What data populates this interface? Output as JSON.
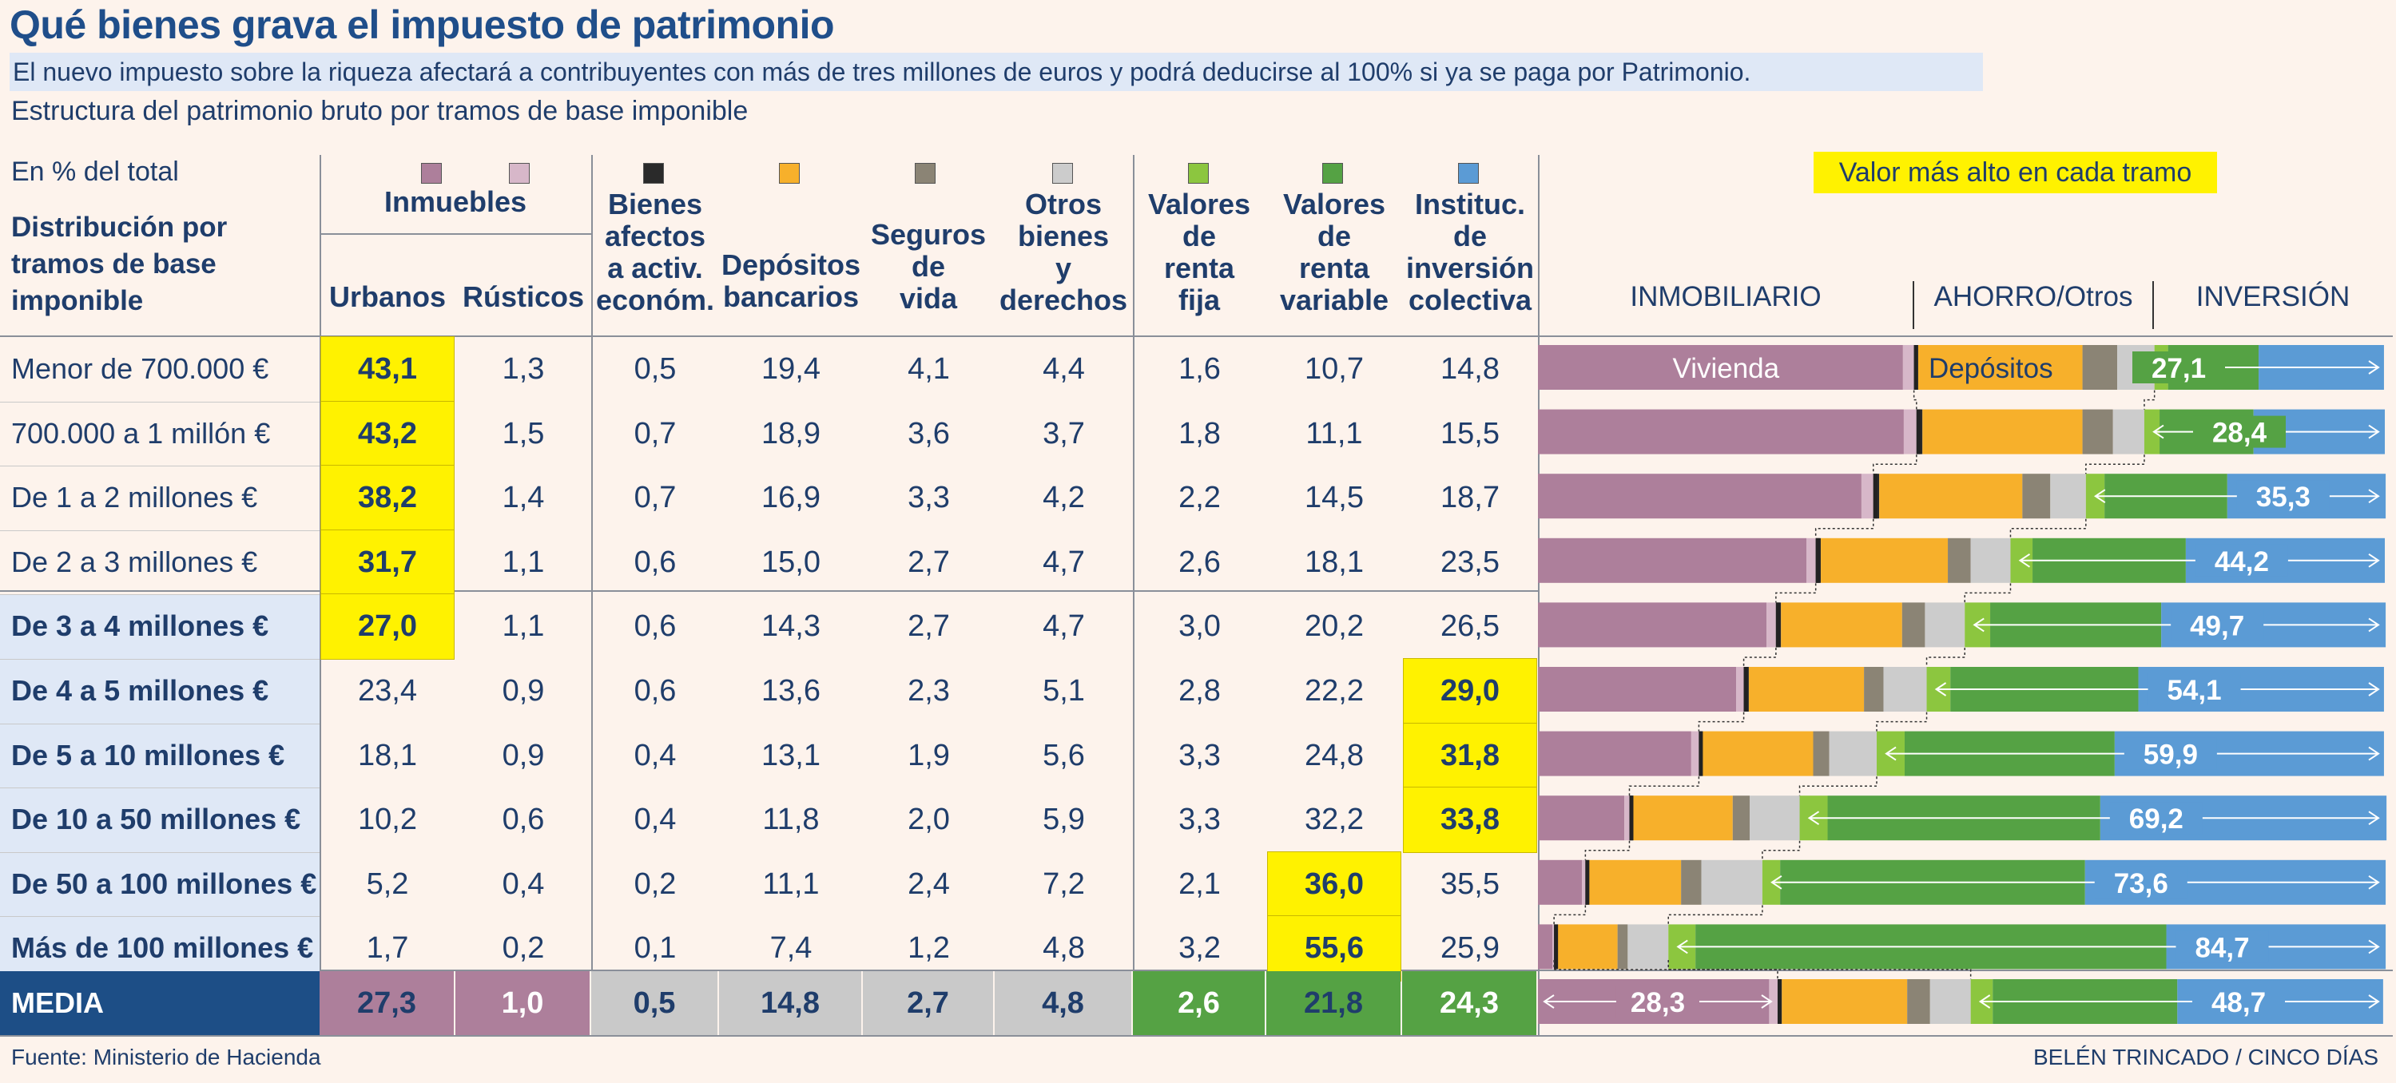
{
  "title": "Qué bienes grava el impuesto de patrimonio",
  "subtitle": "El nuevo impuesto sobre la riqueza afectará a contribuyentes con más de tres millones de euros y podrá deducirse al 100% si ya se paga por Patrimonio.",
  "caption": "Estructura del patrimonio bruto por tramos de base imponible",
  "unit_label": "En % del total",
  "row_header": "Distribución por tramos de base imponible",
  "legend_note": "Valor más alto en cada tramo",
  "highlight_color": "#fff200",
  "group_label": "Inmuebles",
  "columns": [
    {
      "label": "Urbanos",
      "color": "#ad7f9b"
    },
    {
      "label": "Rústicos",
      "color": "#d7b7c9"
    },
    {
      "label": "Bienes afectos a activ. económ.",
      "color": "#2a2a2a"
    },
    {
      "label": "Depósitos bancarios",
      "color": "#f7b02b"
    },
    {
      "label": "Seguros de vida",
      "color": "#8b8475"
    },
    {
      "label": "Otros bienes y derechos",
      "color": "#cccccc"
    },
    {
      "label": "Valores de renta fija",
      "color": "#8cc63f"
    },
    {
      "label": "Valores de renta variable",
      "color": "#55a244"
    },
    {
      "label": "Instituc. de inversión colectiva",
      "color": "#5b9bd5"
    }
  ],
  "section_labels": {
    "inmobiliario": "INMOBILIARIO",
    "ahorro": "AHORRO/Otros",
    "inversion": "INVERSIÓN"
  },
  "bar_labels": {
    "vivienda": "Vivienda",
    "depositos": "Depósitos"
  },
  "rows": [
    {
      "label": "Menor de 700.000 €",
      "bold": false,
      "values": [
        "43,1",
        "1,3",
        "0,5",
        "19,4",
        "4,1",
        "4,4",
        "1,6",
        "10,7",
        "14,8"
      ],
      "highlight": 0,
      "inversion_total": "27,1"
    },
    {
      "label": "700.000 a 1 millón €",
      "bold": false,
      "values": [
        "43,2",
        "1,5",
        "0,7",
        "18,9",
        "3,6",
        "3,7",
        "1,8",
        "11,1",
        "15,5"
      ],
      "highlight": 0,
      "inversion_total": "28,4"
    },
    {
      "label": "De 1 a 2 millones €",
      "bold": false,
      "values": [
        "38,2",
        "1,4",
        "0,7",
        "16,9",
        "3,3",
        "4,2",
        "2,2",
        "14,5",
        "18,7"
      ],
      "highlight": 0,
      "inversion_total": "35,3"
    },
    {
      "label": "De 2 a 3 millones €",
      "bold": false,
      "values": [
        "31,7",
        "1,1",
        "0,6",
        "15,0",
        "2,7",
        "4,7",
        "2,6",
        "18,1",
        "23,5"
      ],
      "highlight": 0,
      "inversion_total": "44,2"
    },
    {
      "label": "De 3 a 4 millones €",
      "bold": true,
      "values": [
        "27,0",
        "1,1",
        "0,6",
        "14,3",
        "2,7",
        "4,7",
        "3,0",
        "20,2",
        "26,5"
      ],
      "highlight": 0,
      "inversion_total": "49,7"
    },
    {
      "label": "De 4 a 5 millones €",
      "bold": true,
      "values": [
        "23,4",
        "0,9",
        "0,6",
        "13,6",
        "2,3",
        "5,1",
        "2,8",
        "22,2",
        "29,0"
      ],
      "highlight": 8,
      "inversion_total": "54,1"
    },
    {
      "label": "De 5 a 10 millones €",
      "bold": true,
      "values": [
        "18,1",
        "0,9",
        "0,4",
        "13,1",
        "1,9",
        "5,6",
        "3,3",
        "24,8",
        "31,8"
      ],
      "highlight": 8,
      "inversion_total": "59,9"
    },
    {
      "label": "De 10 a 50 millones €",
      "bold": true,
      "values": [
        "10,2",
        "0,6",
        "0,4",
        "11,8",
        "2,0",
        "5,9",
        "3,3",
        "32,2",
        "33,8"
      ],
      "highlight": 8,
      "inversion_total": "69,2"
    },
    {
      "label": "De 50 a 100 millones €",
      "bold": true,
      "values": [
        "5,2",
        "0,4",
        "0,2",
        "11,1",
        "2,4",
        "7,2",
        "2,1",
        "36,0",
        "35,5"
      ],
      "highlight": 7,
      "inversion_total": "73,6"
    },
    {
      "label": "Más de 100 millones €",
      "bold": true,
      "values": [
        "1,7",
        "0,2",
        "0,1",
        "7,4",
        "1,2",
        "4,8",
        "3,2",
        "55,6",
        "25,9"
      ],
      "highlight": 7,
      "inversion_total": "84,7"
    }
  ],
  "media": {
    "label": "MEDIA",
    "values": [
      "27,3",
      "1,0",
      "0,5",
      "14,8",
      "2,7",
      "4,8",
      "2,6",
      "21,8",
      "24,3"
    ],
    "inmobiliario_total": "28,3",
    "inversion_total": "48,7",
    "cell_colors": [
      "#ad7f9b",
      "#ad7f9b",
      "#c9c9c9",
      "#c9c9c9",
      "#c9c9c9",
      "#c9c9c9",
      "#55a244",
      "#55a244",
      "#55a244"
    ],
    "text_colors": [
      "#1f3d6b",
      "#ffffff",
      "#1f3d6b",
      "#1f3d6b",
      "#1f3d6b",
      "#1f3d6b",
      "#ffffff",
      "#1f3d6b",
      "#ffffff"
    ]
  },
  "footer_source": "Fuente: Ministerio de Hacienda",
  "footer_credit": "BELÉN TRINCADO / CINCO DÍAS",
  "chart_data": {
    "type": "bar",
    "stacked": true,
    "orientation": "horizontal",
    "categories": [
      "Menor de 700.000 €",
      "700.000 a 1 millón €",
      "De 1 a 2 millones €",
      "De 2 a 3 millones €",
      "De 3 a 4 millones €",
      "De 4 a 5 millones €",
      "De 5 a 10 millones €",
      "De 10 a 50 millones €",
      "De 50 a 100 millones €",
      "Más de 100 millones €",
      "MEDIA"
    ],
    "series": [
      {
        "name": "Urbanos",
        "values": [
          43.1,
          43.2,
          38.2,
          31.7,
          27.0,
          23.4,
          18.1,
          10.2,
          5.2,
          1.7,
          27.3
        ]
      },
      {
        "name": "Rústicos",
        "values": [
          1.3,
          1.5,
          1.4,
          1.1,
          1.1,
          0.9,
          0.9,
          0.6,
          0.4,
          0.2,
          1.0
        ]
      },
      {
        "name": "Bienes afectos a activ. económ.",
        "values": [
          0.5,
          0.7,
          0.7,
          0.6,
          0.6,
          0.6,
          0.4,
          0.4,
          0.2,
          0.1,
          0.5
        ]
      },
      {
        "name": "Depósitos bancarios",
        "values": [
          19.4,
          18.9,
          16.9,
          15.0,
          14.3,
          13.6,
          13.1,
          11.8,
          11.1,
          7.4,
          14.8
        ]
      },
      {
        "name": "Seguros de vida",
        "values": [
          4.1,
          3.6,
          3.3,
          2.7,
          2.7,
          2.3,
          1.9,
          2.0,
          2.4,
          1.2,
          2.7
        ]
      },
      {
        "name": "Otros bienes y derechos",
        "values": [
          4.4,
          3.7,
          4.2,
          4.7,
          4.7,
          5.1,
          5.6,
          5.9,
          7.2,
          4.8,
          4.8
        ]
      },
      {
        "name": "Valores de renta fija",
        "values": [
          1.6,
          1.8,
          2.2,
          2.6,
          3.0,
          2.8,
          3.3,
          3.3,
          2.1,
          3.2,
          2.6
        ]
      },
      {
        "name": "Valores de renta variable",
        "values": [
          10.7,
          11.1,
          14.5,
          18.1,
          20.2,
          22.2,
          24.8,
          32.2,
          36.0,
          55.6,
          21.8
        ]
      },
      {
        "name": "Instituc. de inversión colectiva",
        "values": [
          14.8,
          15.5,
          18.7,
          23.5,
          26.5,
          29.0,
          31.8,
          33.8,
          35.5,
          25.9,
          24.3
        ]
      }
    ],
    "xlim": [
      0,
      100
    ]
  }
}
